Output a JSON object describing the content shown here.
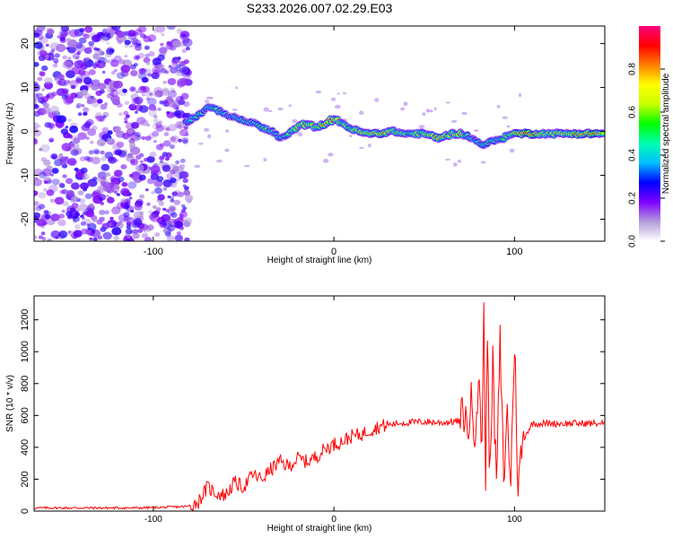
{
  "figure_title": "S233.2026.007.02.29.E03",
  "chart_data": [
    {
      "type": "heatmap",
      "title": "S233.2026.007.02.29.E03",
      "xlabel": "Height of straight line (km)",
      "ylabel": "Frequency (Hz)",
      "xlim": [
        -166,
        150
      ],
      "ylim": [
        -25,
        24
      ],
      "xticks": [
        -100,
        0,
        100
      ],
      "yticks": [
        -20,
        -10,
        0,
        10,
        20
      ],
      "colorbar": {
        "label": "Normalized spectral amplitude",
        "range": [
          0,
          1
        ],
        "ticks": [
          "0.0",
          "0.2",
          "0.4",
          "0.6",
          "0.8"
        ],
        "colors": [
          "#ffffff",
          "#b39ddb",
          "#7f00ff",
          "#0000ff",
          "#00bfff",
          "#00ffb0",
          "#00ff00",
          "#c8ff00",
          "#ffff00",
          "#ff8000",
          "#ff0000",
          "#ff0080"
        ]
      },
      "noise_region": {
        "x_range": [
          -166,
          -80
        ],
        "description_values": [
          0.05,
          0.15
        ]
      },
      "ridge": {
        "x": [
          -82,
          -78,
          -74,
          -70,
          -66,
          -62,
          -58,
          -54,
          -50,
          -46,
          -42,
          -38,
          -34,
          -30,
          -26,
          -22,
          -18,
          -14,
          -10,
          -6,
          -2,
          2,
          6,
          10,
          14,
          18,
          22,
          26,
          30,
          34,
          38,
          42,
          46,
          50,
          54,
          58,
          62,
          66,
          70,
          74,
          78,
          82,
          86,
          90,
          94,
          98,
          102,
          106,
          110,
          114,
          118,
          122,
          126,
          130,
          134,
          138,
          142,
          146,
          150
        ],
        "freq": [
          2,
          3,
          4,
          5.5,
          5,
          4.5,
          3.5,
          3,
          2.5,
          2,
          1.5,
          0.5,
          0,
          -1.5,
          -1,
          0.5,
          1.5,
          1.5,
          1,
          1.5,
          2.5,
          2.5,
          1.5,
          0.5,
          0,
          -0.5,
          -0.5,
          -0.5,
          0,
          0,
          -0.5,
          -0.5,
          -0.5,
          -0.5,
          -1,
          -1.5,
          -1,
          -0.5,
          -0.5,
          -1,
          -2,
          -3,
          -2.5,
          -2,
          -1.5,
          -0.5,
          -0.5,
          -0.5,
          -0.5,
          -0.5,
          -0.5,
          -0.5,
          -0.5,
          -0.5,
          -0.5,
          -0.5,
          -0.5,
          -0.5,
          -0.5
        ],
        "amp": [
          0.35,
          0.45,
          0.5,
          0.4,
          0.5,
          0.45,
          0.4,
          0.45,
          0.5,
          0.45,
          0.5,
          0.55,
          0.45,
          0.4,
          0.5,
          0.6,
          0.7,
          0.65,
          0.6,
          0.75,
          0.8,
          0.7,
          0.6,
          0.6,
          0.7,
          0.75,
          0.8,
          0.85,
          0.75,
          0.6,
          0.65,
          0.55,
          0.6,
          0.65,
          0.7,
          0.85,
          0.7,
          0.6,
          0.7,
          0.55,
          0.4,
          0.45,
          0.55,
          0.5,
          0.55,
          0.6,
          0.8,
          0.95,
          0.9,
          0.7,
          0.6,
          0.65,
          0.7,
          0.75,
          0.8,
          0.85,
          0.9,
          0.8,
          0.7
        ]
      }
    },
    {
      "type": "line",
      "xlabel": "Height of straight line (km)",
      "ylabel": "SNR (10 * v/v)",
      "xlim": [
        -166,
        150
      ],
      "ylim": [
        0,
        1350
      ],
      "xticks": [
        -100,
        0,
        100
      ],
      "yticks": [
        0,
        200,
        400,
        600,
        800,
        1000,
        1200
      ],
      "series": [
        {
          "name": "SNR",
          "color": "#ff0000",
          "x": [
            -166,
            -150,
            -130,
            -110,
            -90,
            -80,
            -75,
            -70,
            -65,
            -60,
            -55,
            -50,
            -45,
            -40,
            -35,
            -30,
            -25,
            -20,
            -15,
            -10,
            -5,
            0,
            5,
            10,
            15,
            20,
            25,
            30,
            35,
            40,
            50,
            60,
            70,
            72,
            74,
            76,
            78,
            80,
            82,
            83,
            84,
            85,
            86,
            88,
            90,
            92,
            94,
            96,
            98,
            100,
            102,
            104,
            106,
            110,
            120,
            130,
            140,
            150
          ],
          "y": [
            20,
            20,
            20,
            20,
            25,
            30,
            60,
            150,
            110,
            100,
            180,
            150,
            230,
            200,
            260,
            310,
            280,
            330,
            310,
            340,
            390,
            420,
            440,
            470,
            480,
            510,
            530,
            540,
            550,
            555,
            560,
            555,
            565,
            620,
            500,
            680,
            520,
            800,
            430,
            1350,
            60,
            1200,
            250,
            900,
            150,
            1050,
            200,
            600,
            180,
            1090,
            120,
            400,
            480,
            550,
            550,
            550,
            550,
            550
          ]
        }
      ]
    }
  ]
}
